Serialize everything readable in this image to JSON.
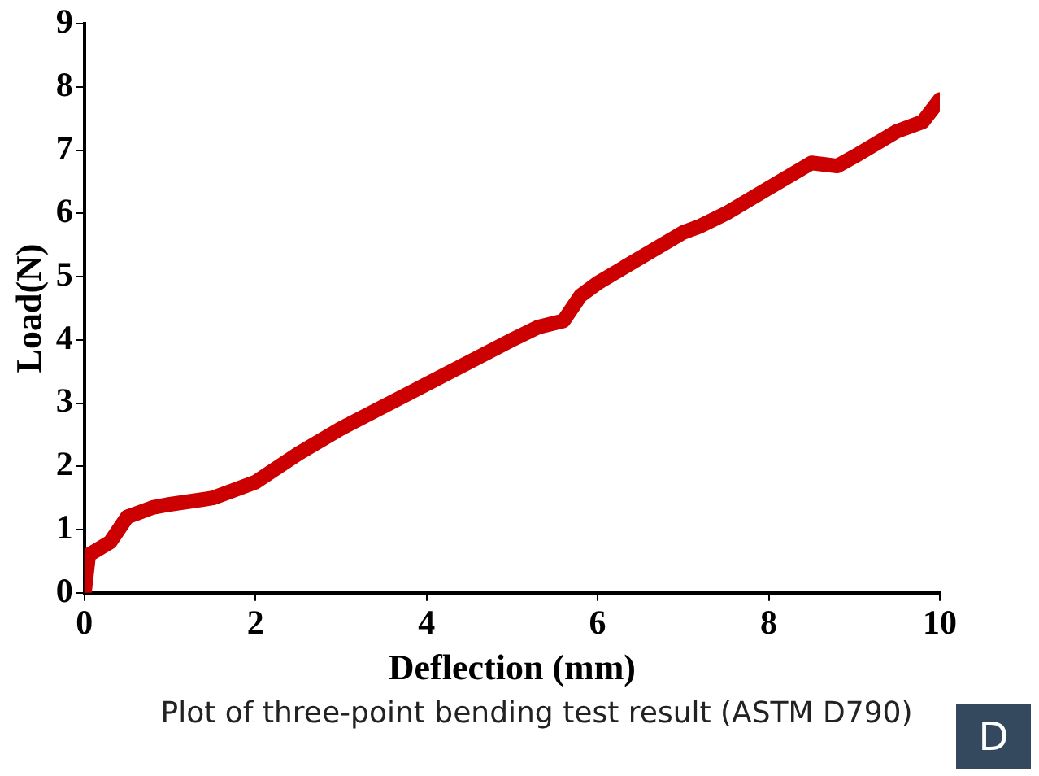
{
  "chart_data": {
    "type": "line",
    "xlabel": "Deflection (mm)",
    "ylabel": "Load(N)",
    "x": [
      0,
      0.05,
      0.3,
      0.5,
      0.8,
      1,
      1.5,
      2,
      2.5,
      3,
      3.5,
      4,
      4.5,
      5,
      5.3,
      5.6,
      5.8,
      6,
      6.5,
      7,
      7.2,
      7.5,
      8,
      8.5,
      8.8,
      9,
      9.5,
      9.8,
      10
    ],
    "series": [
      {
        "color": "#cc0000",
        "values": [
          0,
          0.6,
          0.8,
          1.2,
          1.35,
          1.4,
          1.5,
          1.75,
          2.2,
          2.6,
          2.95,
          3.3,
          3.65,
          4.0,
          4.2,
          4.3,
          4.7,
          4.9,
          5.3,
          5.7,
          5.8,
          6.0,
          6.4,
          6.8,
          6.75,
          6.9,
          7.3,
          7.45,
          7.8
        ]
      }
    ],
    "xlim": [
      0,
      10
    ],
    "xticks": [
      0,
      2,
      4,
      6,
      8,
      10
    ],
    "ylim": [
      0,
      9
    ],
    "yticks": [
      0,
      1,
      2,
      3,
      4,
      5,
      6,
      7,
      8,
      9
    ],
    "grid": false,
    "legend": false,
    "marker": "none",
    "line_style": "solid",
    "annotations": [
      "Plot of three-point bending test result (ASTM D790)",
      "D"
    ]
  }
}
